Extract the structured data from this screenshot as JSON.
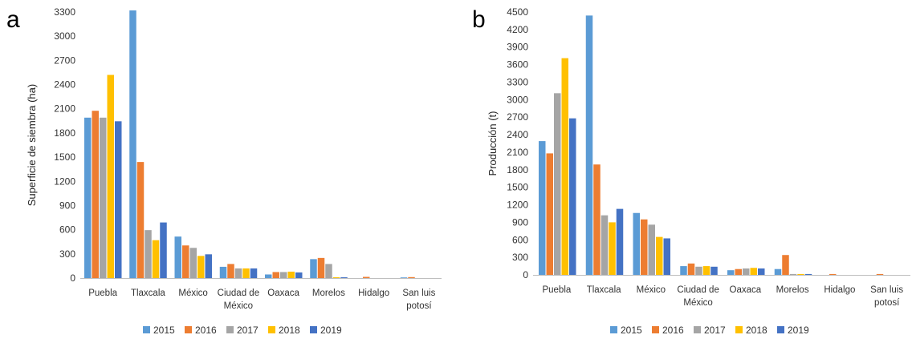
{
  "chart_data": [
    {
      "panel": "a",
      "type": "bar",
      "title": "",
      "xlabel": "",
      "ylabel": "Superficie de siembra (ha)",
      "ylim": [
        0,
        3300
      ],
      "yticks": [
        0,
        300,
        600,
        900,
        1200,
        1500,
        1800,
        2100,
        2400,
        2700,
        3000,
        3300
      ],
      "categories": [
        "Puebla",
        "Tlaxcala",
        "México",
        "Ciudad de México",
        "Oaxaca",
        "Morelos",
        "Hidalgo",
        "San luis potosí"
      ],
      "series": [
        {
          "name": "2015",
          "color": "#5B9BD5",
          "values": [
            1990,
            3320,
            515,
            140,
            45,
            235,
            0,
            8
          ]
        },
        {
          "name": "2016",
          "color": "#ED7D31",
          "values": [
            2075,
            1440,
            405,
            175,
            75,
            250,
            15,
            12
          ]
        },
        {
          "name": "2017",
          "color": "#A5A5A5",
          "values": [
            1990,
            595,
            375,
            120,
            75,
            175,
            0,
            0
          ]
        },
        {
          "name": "2018",
          "color": "#FFC000",
          "values": [
            2520,
            470,
            275,
            120,
            80,
            10,
            0,
            0
          ]
        },
        {
          "name": "2019",
          "color": "#4472C4",
          "values": [
            1945,
            690,
            295,
            120,
            70,
            10,
            0,
            0
          ]
        }
      ],
      "grid": false,
      "legend": "bottom"
    },
    {
      "panel": "b",
      "type": "bar",
      "title": "",
      "xlabel": "",
      "ylabel": "Producción (t)",
      "ylim": [
        0,
        4500
      ],
      "yticks": [
        0,
        300,
        600,
        900,
        1200,
        1500,
        1800,
        2100,
        2400,
        2700,
        3000,
        3300,
        3600,
        3900,
        4200,
        4500
      ],
      "categories": [
        "Puebla",
        "Tlaxcala",
        "México",
        "Ciudad de México",
        "Oaxaca",
        "Morelos",
        "Hidalgo",
        "San luis potosí"
      ],
      "series": [
        {
          "name": "2015",
          "color": "#5B9BD5",
          "values": [
            2290,
            4440,
            1060,
            150,
            80,
            100,
            0,
            0
          ]
        },
        {
          "name": "2016",
          "color": "#ED7D31",
          "values": [
            2080,
            1890,
            950,
            195,
            100,
            340,
            15,
            15
          ]
        },
        {
          "name": "2017",
          "color": "#A5A5A5",
          "values": [
            3110,
            1020,
            860,
            140,
            110,
            15,
            0,
            0
          ]
        },
        {
          "name": "2018",
          "color": "#FFC000",
          "values": [
            3710,
            900,
            650,
            150,
            120,
            15,
            0,
            0
          ]
        },
        {
          "name": "2019",
          "color": "#4472C4",
          "values": [
            2680,
            1130,
            625,
            140,
            110,
            15,
            0,
            0
          ]
        }
      ],
      "grid": false,
      "legend": "bottom"
    }
  ]
}
